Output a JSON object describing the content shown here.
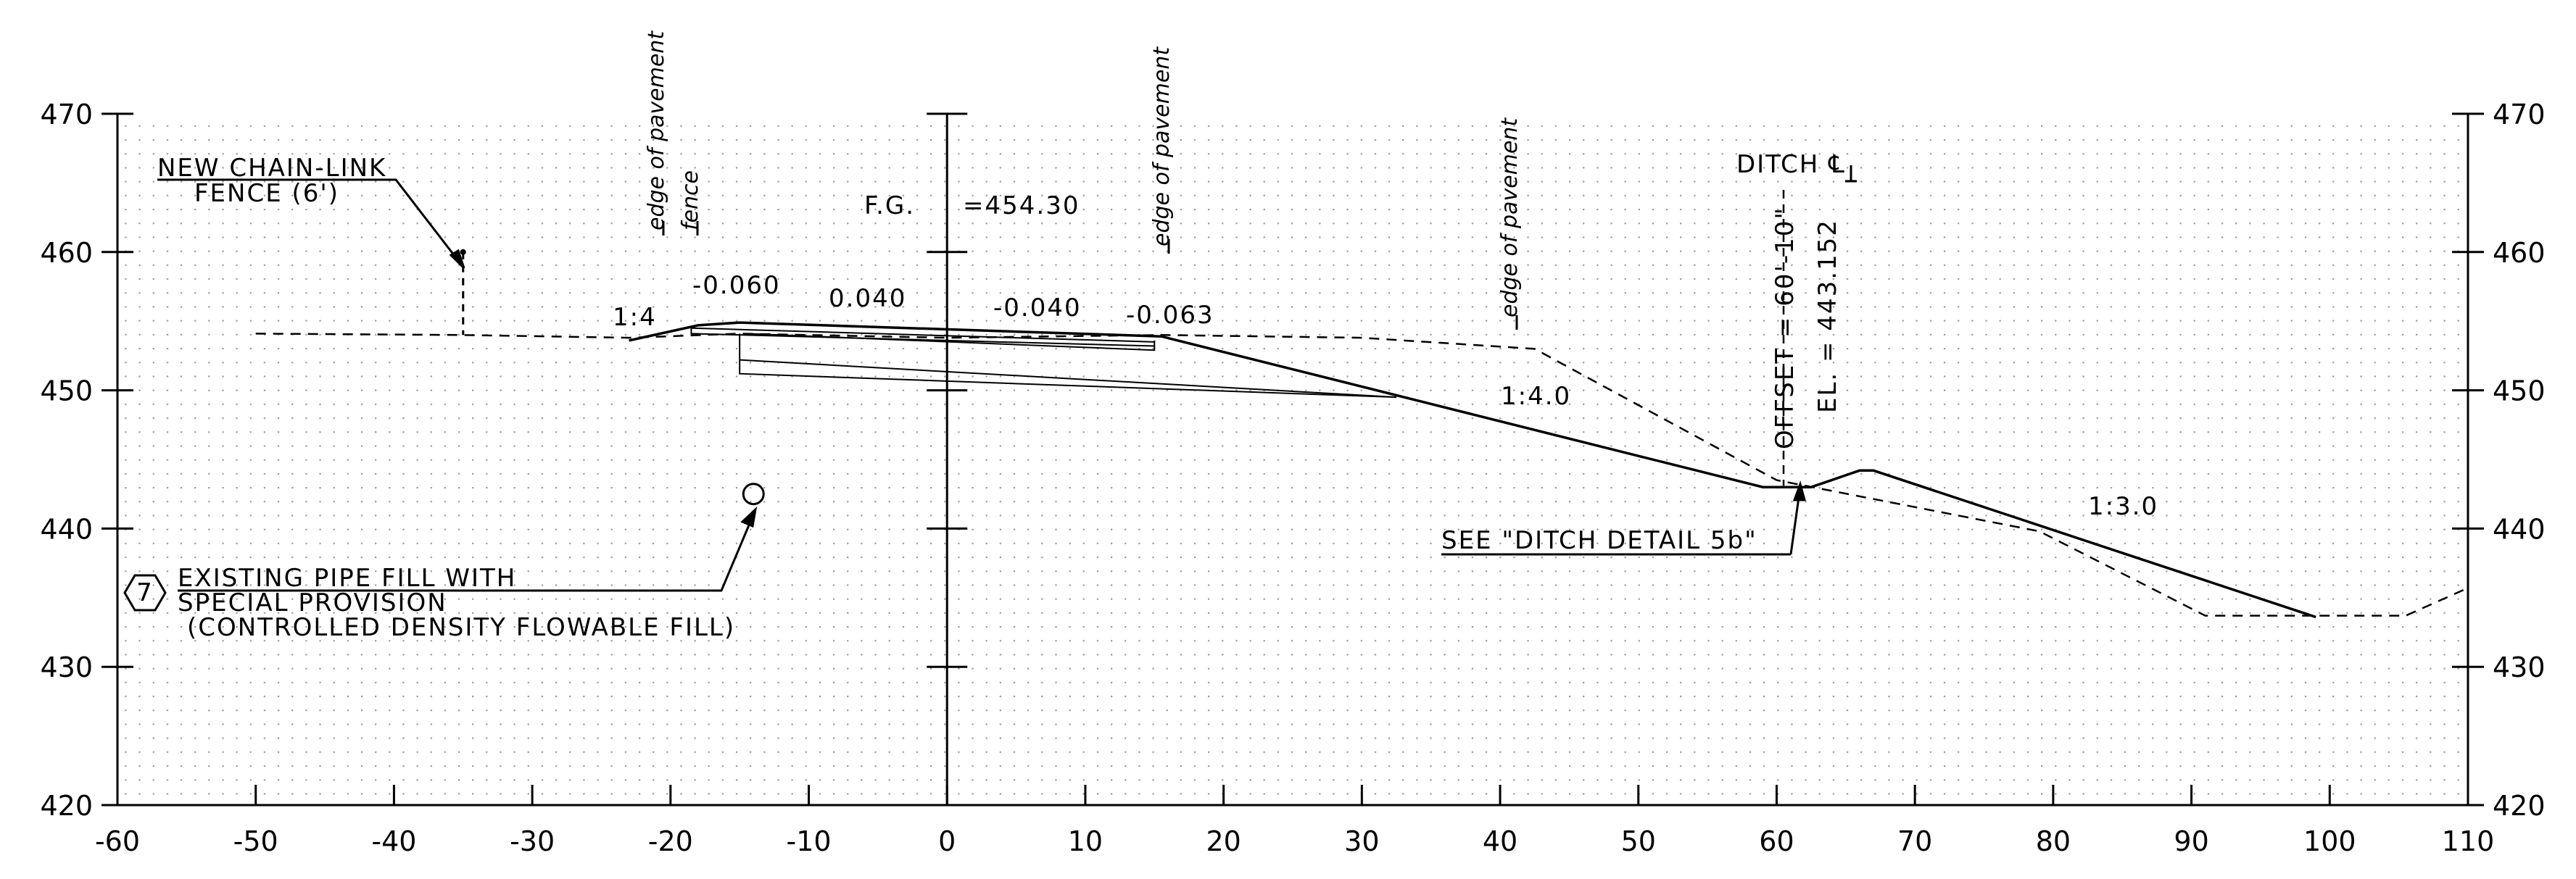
{
  "chart_data": {
    "type": "line",
    "xlim": [
      -60,
      110
    ],
    "ylim": [
      420,
      470
    ],
    "x_ticks": [
      "-60",
      "-50",
      "-40",
      "-30",
      "-20",
      "-10",
      "0",
      "10",
      "20",
      "30",
      "40",
      "50",
      "60",
      "70",
      "80",
      "90",
      "100",
      "110"
    ],
    "y_ticks": [
      "420",
      "430",
      "440",
      "450",
      "460",
      "470"
    ],
    "series": [
      {
        "style": "solid",
        "x": [
          -23,
          -18,
          -15,
          15.5,
          59,
          62.5,
          66,
          67,
          99
        ],
        "y": [
          453.6,
          454.7,
          454.9,
          453.9,
          443.0,
          443.0,
          444.2,
          444.2,
          433.6
        ]
      },
      {
        "style": "dashed",
        "x": [
          -50,
          -35,
          -23,
          -15,
          0,
          15.5,
          30,
          42.5,
          60,
          79,
          91,
          105.5,
          110
        ],
        "y": [
          454.1,
          454.0,
          453.8,
          454.1,
          453.8,
          454.0,
          453.8,
          453.0,
          443.5,
          439.8,
          433.7,
          433.7,
          435.7
        ]
      }
    ],
    "fence": {
      "x": -35,
      "y_top": 460.0,
      "y_bottom": 454.0
    },
    "pipe": {
      "x": -14,
      "y": 442.5
    },
    "ditch_x": 60.5
  },
  "labels": {
    "new_fence_line1": "NEW CHAIN-LINK",
    "new_fence_line2": "FENCE (6')",
    "edge_pavement_1": "edge of pavement",
    "fence": "fence",
    "edge_pavement_2": "edge of pavement",
    "edge_pavement_3": "edge of pavement",
    "fg_label": "F.G.",
    "fg_value": "=454.30",
    "slope_1_4": "1:4",
    "slope_m060": "-0.060",
    "slope_040": "0.040",
    "slope_m040": "-0.040",
    "slope_m063": "-0.063",
    "slope_1_40": "1:4.0",
    "slope_1_30": "1:3.0",
    "ditch": "DITCH ℄",
    "offset": "OFFSET = 60'-10\"",
    "elevation": "EL. = 443.152",
    "see_ditch": "SEE \"DITCH DETAIL 5b\"",
    "note_number": "7",
    "pipe_note_1": "EXISTING PIPE FILL WITH",
    "pipe_note_2": "SPECIAL PROVISION",
    "pipe_note_3": "(CONTROLLED DENSITY FLOWABLE FILL)"
  }
}
